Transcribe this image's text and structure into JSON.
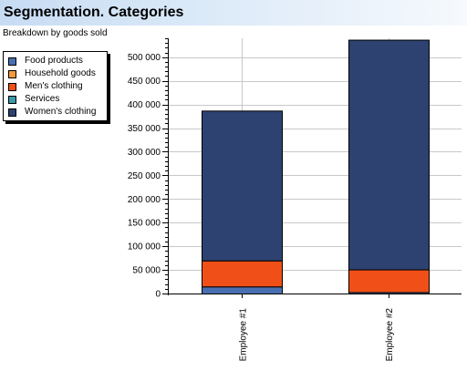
{
  "header": {
    "title": "Segmentation. Categories",
    "subtitle": "Breakdown by goods sold"
  },
  "legend": {
    "items": [
      {
        "label": "Food products",
        "color": "#4a6fb0"
      },
      {
        "label": "Household goods",
        "color": "#f39a3d"
      },
      {
        "label": "Men's clothing",
        "color": "#f05018"
      },
      {
        "label": "Services",
        "color": "#3a9aa8"
      },
      {
        "label": "Women's clothing",
        "color": "#2d4270"
      }
    ]
  },
  "chart_data": {
    "type": "bar",
    "stacked": true,
    "title": "",
    "xlabel": "",
    "ylabel": "",
    "categories": [
      "Employee #1",
      "Employee #2"
    ],
    "series": [
      {
        "name": "Food products",
        "color": "#4a6fb0",
        "values": [
          15000,
          3000
        ]
      },
      {
        "name": "Household goods",
        "color": "#f39a3d",
        "values": [
          0,
          0
        ]
      },
      {
        "name": "Men's clothing",
        "color": "#f05018",
        "values": [
          55000,
          48000
        ]
      },
      {
        "name": "Services",
        "color": "#3a9aa8",
        "values": [
          0,
          0
        ]
      },
      {
        "name": "Women's clothing",
        "color": "#2d4270",
        "values": [
          317000,
          486000
        ]
      }
    ],
    "ylim": [
      0,
      540000
    ],
    "yticks": [
      0,
      50000,
      100000,
      150000,
      200000,
      250000,
      300000,
      350000,
      400000,
      450000,
      500000
    ],
    "ytick_labels": [
      "0",
      "50 000",
      "100 000",
      "150 000",
      "200 000",
      "250 000",
      "300 000",
      "350 000",
      "400 000",
      "450 000",
      "500 000"
    ],
    "grid": true,
    "legend_position": "top-left"
  }
}
